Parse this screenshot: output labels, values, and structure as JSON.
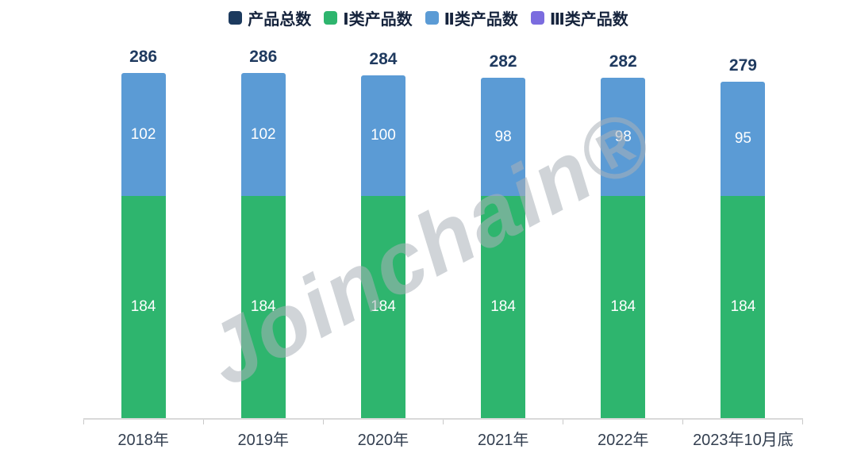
{
  "watermark": "Joinchain®",
  "chart_data": {
    "type": "bar",
    "stacked": true,
    "title": "",
    "xlabel": "",
    "ylabel": "",
    "grid": false,
    "legend_position": "top",
    "ylim": [
      0,
      286
    ],
    "categories": [
      "2018年",
      "2019年",
      "2020年",
      "2021年",
      "2022年",
      "2023年10月底"
    ],
    "series": [
      {
        "name": "Ⅰ类产品数",
        "color": "#2eb56e",
        "values": [
          184,
          184,
          184,
          184,
          184,
          184
        ]
      },
      {
        "name": "Ⅱ类产品数",
        "color": "#5b9bd5",
        "values": [
          102,
          102,
          100,
          98,
          98,
          95
        ]
      }
    ],
    "totals": [
      286,
      286,
      284,
      282,
      282,
      279
    ],
    "legend": [
      {
        "label": "产品总数",
        "color": "#1c3a5e"
      },
      {
        "label": "Ⅰ类产品数",
        "color": "#2eb56e"
      },
      {
        "label": "Ⅱ类产品数",
        "color": "#5b9bd5"
      },
      {
        "label": "Ⅲ类产品数",
        "color": "#7b6cdf"
      }
    ]
  }
}
